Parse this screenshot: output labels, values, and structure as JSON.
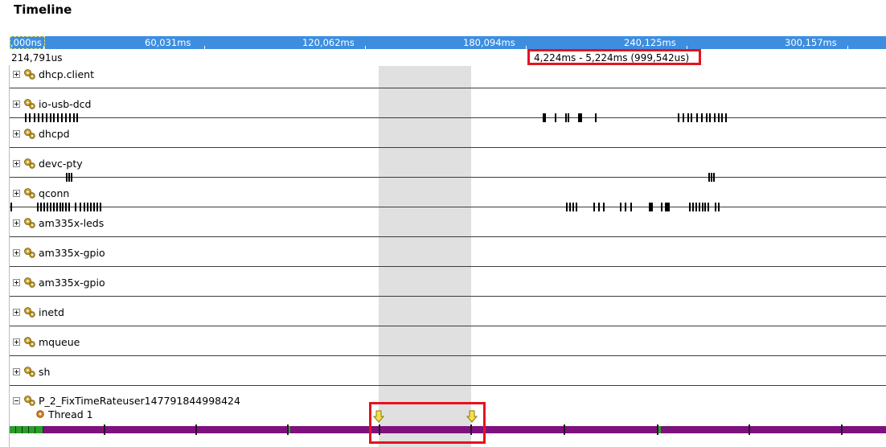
{
  "panel": {
    "title": "Timeline"
  },
  "ruler": {
    "ticks": [
      {
        "label": ",000ns"
      },
      {
        "label": "60,031ms"
      },
      {
        "label": "120,062ms"
      },
      {
        "label": "180,094ms"
      },
      {
        "label": "240,125ms"
      },
      {
        "label": "300,157ms"
      }
    ],
    "cursor_position": "214,791us",
    "selection_range": "4,224ms - 5,224ms (999,542us)"
  },
  "processes": [
    {
      "name": "dhcp.client",
      "expanded": false,
      "icon": "gear-process-icon"
    },
    {
      "name": "io-usb-dcd",
      "expanded": false,
      "icon": "gear-process-icon"
    },
    {
      "name": "dhcpd",
      "expanded": false,
      "icon": "gear-process-icon"
    },
    {
      "name": "devc-pty",
      "expanded": false,
      "icon": "gear-process-icon"
    },
    {
      "name": "qconn",
      "expanded": false,
      "icon": "gear-process-icon"
    },
    {
      "name": "am335x-leds",
      "expanded": false,
      "icon": "gear-process-icon"
    },
    {
      "name": "am335x-gpio",
      "expanded": false,
      "icon": "gear-process-icon"
    },
    {
      "name": "am335x-gpio",
      "expanded": false,
      "icon": "gear-process-icon"
    },
    {
      "name": "inetd",
      "expanded": false,
      "icon": "gear-process-icon"
    },
    {
      "name": "mqueue",
      "expanded": false,
      "icon": "gear-process-icon"
    },
    {
      "name": "sh",
      "expanded": false,
      "icon": "gear-process-icon"
    },
    {
      "name": "P_2_FixTimeRateuser147791844998424",
      "expanded": true,
      "icon": "gear-process-icon",
      "threads": [
        {
          "name": "Thread 1",
          "icon": "thread-gear-icon"
        }
      ]
    }
  ],
  "colors": {
    "ruler": "#3d8ee0",
    "thread_running": "#7e117e",
    "thread_active": "#2c9c2c",
    "selection": "#e0e0e0",
    "highlight_box": "#e4131f"
  }
}
